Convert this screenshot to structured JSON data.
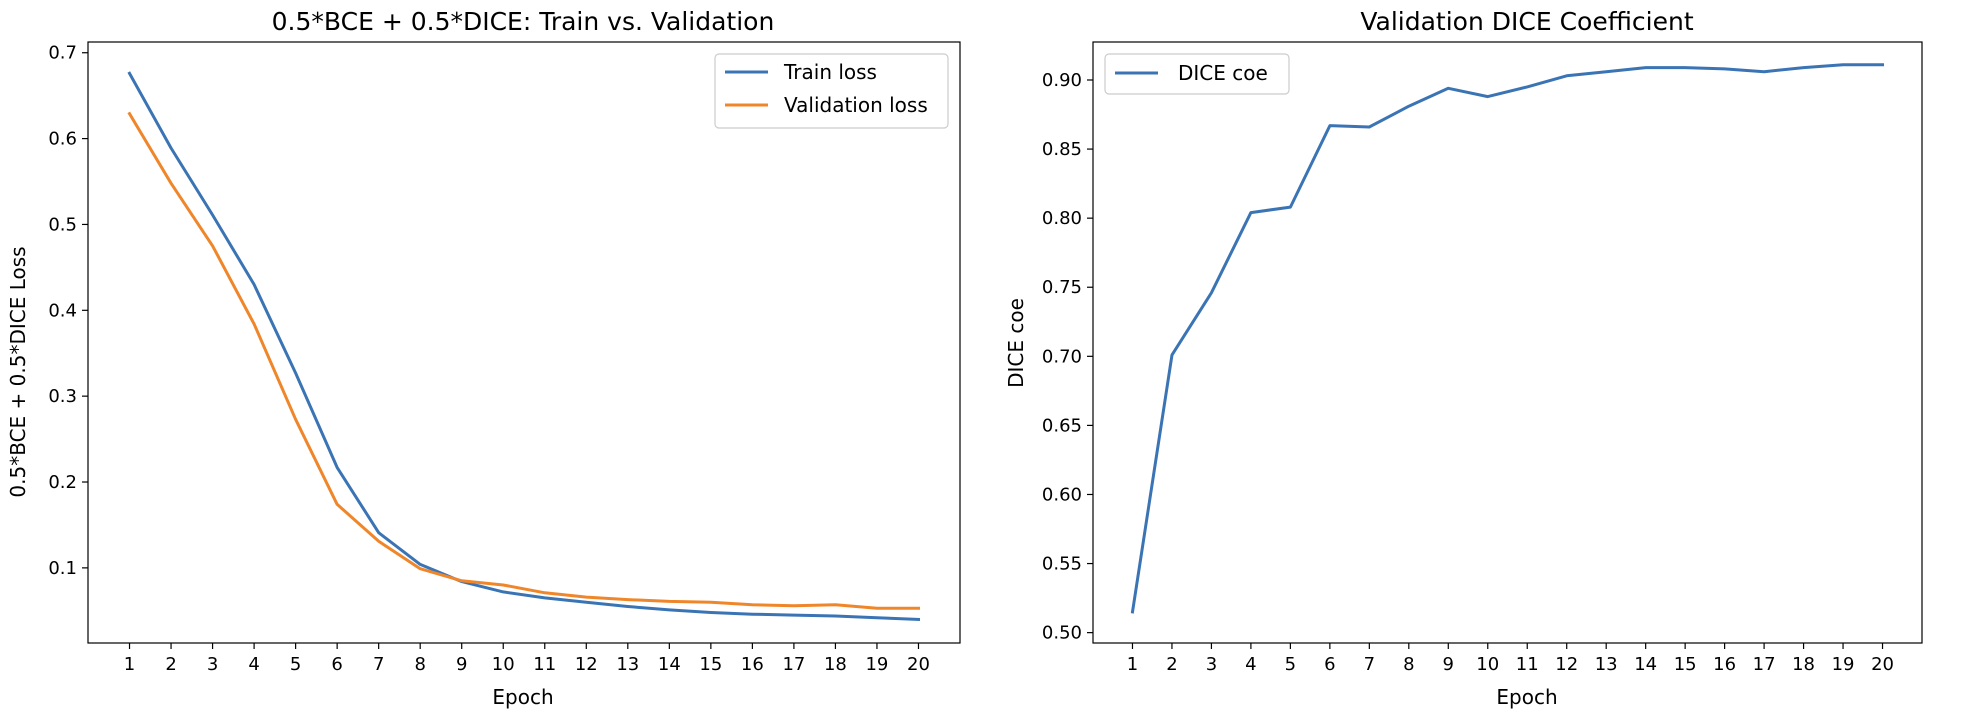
{
  "chart_data": [
    {
      "type": "line",
      "title": "0.5*BCE + 0.5*DICE: Train vs. Validation",
      "xlabel": "Epoch",
      "ylabel": "0.5*BCE + 0.5*DICE Loss",
      "x": [
        1,
        2,
        3,
        4,
        5,
        6,
        7,
        8,
        9,
        10,
        11,
        12,
        13,
        14,
        15,
        16,
        17,
        18,
        19,
        20
      ],
      "xlim": [
        0,
        21
      ],
      "ylim": [
        0.0125,
        0.7125
      ],
      "yticks": [
        0.1,
        0.2,
        0.3,
        0.4,
        0.5,
        0.6,
        0.7
      ],
      "ytick_labels": [
        "0.1",
        "0.2",
        "0.3",
        "0.4",
        "0.5",
        "0.6",
        "0.7"
      ],
      "grid": false,
      "legend": "top-right",
      "series": [
        {
          "name": "Train loss",
          "color": "#3b74b4",
          "values": [
            0.676,
            0.589,
            0.511,
            0.43,
            0.327,
            0.217,
            0.141,
            0.104,
            0.084,
            0.072,
            0.065,
            0.06,
            0.055,
            0.051,
            0.048,
            0.046,
            0.045,
            0.044,
            0.042,
            0.04
          ]
        },
        {
          "name": "Validation loss",
          "color": "#f0862a",
          "values": [
            0.629,
            0.548,
            0.475,
            0.384,
            0.273,
            0.174,
            0.131,
            0.099,
            0.085,
            0.08,
            0.071,
            0.066,
            0.063,
            0.061,
            0.06,
            0.057,
            0.056,
            0.057,
            0.053,
            0.053
          ]
        }
      ]
    },
    {
      "type": "line",
      "title": "Validation DICE Coefficient",
      "xlabel": "Epoch",
      "ylabel": "DICE coe",
      "x": [
        1,
        2,
        3,
        4,
        5,
        6,
        7,
        8,
        9,
        10,
        11,
        12,
        13,
        14,
        15,
        16,
        17,
        18,
        19,
        20
      ],
      "xlim": [
        0,
        21
      ],
      "ylim": [
        0.4925,
        0.9275
      ],
      "yticks": [
        0.5,
        0.55,
        0.6,
        0.65,
        0.7,
        0.75,
        0.8,
        0.85,
        0.9
      ],
      "ytick_labels": [
        "0.50",
        "0.55",
        "0.60",
        "0.65",
        "0.70",
        "0.75",
        "0.80",
        "0.85",
        "0.90"
      ],
      "grid": false,
      "legend": "top-left",
      "series": [
        {
          "name": "DICE coe",
          "color": "#3b74b4",
          "values": [
            0.515,
            0.701,
            0.746,
            0.804,
            0.808,
            0.867,
            0.866,
            0.881,
            0.894,
            0.888,
            0.895,
            0.903,
            0.906,
            0.909,
            0.909,
            0.908,
            0.906,
            0.909,
            0.911,
            0.911
          ]
        }
      ]
    }
  ]
}
